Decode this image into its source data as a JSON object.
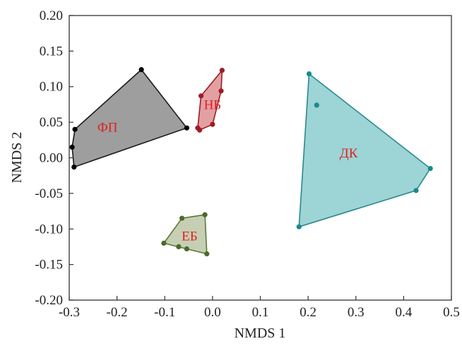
{
  "chart_data": {
    "type": "scatter",
    "xlabel": "NMDS 1",
    "ylabel": "NMDS 2",
    "xlim": [
      -0.3,
      0.5
    ],
    "ylim": [
      -0.2,
      0.2
    ],
    "x_ticks": [
      -0.3,
      -0.2,
      -0.1,
      0.0,
      0.1,
      0.2,
      0.3,
      0.4,
      0.5
    ],
    "x_tick_labels": [
      "-0.3",
      "-0.2",
      "-0.1",
      "0.0",
      "0.1",
      "0.2",
      "0.3",
      "0.4",
      "0.5"
    ],
    "y_ticks": [
      0.2,
      0.15,
      0.1,
      0.05,
      0.0,
      -0.05,
      -0.1,
      -0.15,
      -0.2
    ],
    "y_tick_labels": [
      "0.20",
      "0.15",
      "0.10",
      "0.05",
      "0.00",
      "-0.05",
      "-0.10",
      "-0.15",
      "-0.20"
    ],
    "grid": false,
    "series": [
      {
        "name": "ФП",
        "fill": "#9e9e9e",
        "stroke": "#1a1a1a",
        "point_color": "#000000",
        "label_color": "#e02020",
        "hull": [
          [
            -0.149,
            0.124
          ],
          [
            -0.054,
            0.042
          ],
          [
            -0.29,
            -0.013
          ],
          [
            -0.294,
            0.015
          ],
          [
            -0.288,
            0.04
          ]
        ],
        "points": [
          [
            -0.149,
            0.124
          ],
          [
            -0.054,
            0.042
          ],
          [
            -0.29,
            -0.013
          ],
          [
            -0.294,
            0.015
          ],
          [
            -0.288,
            0.04
          ]
        ],
        "label_at": [
          -0.22,
          0.041
        ]
      },
      {
        "name": "НБ",
        "fill": "#e3a0a2",
        "stroke": "#a01a24",
        "point_color": "#a01a24",
        "label_color": "#e02020",
        "hull": [
          [
            -0.024,
            0.087
          ],
          [
            0.02,
            0.123
          ],
          [
            0.018,
            0.094
          ],
          [
            0.0,
            0.047
          ],
          [
            -0.027,
            0.039
          ],
          [
            -0.031,
            0.042
          ]
        ],
        "points": [
          [
            -0.024,
            0.087
          ],
          [
            0.02,
            0.123
          ],
          [
            0.018,
            0.094
          ],
          [
            0.0,
            0.047
          ],
          [
            -0.027,
            0.039
          ],
          [
            -0.031,
            0.042
          ]
        ],
        "label_at": [
          0.0,
          0.073
        ]
      },
      {
        "name": "ДК",
        "fill": "#9dd4d6",
        "stroke": "#2a8a8c",
        "point_color": "#1a8a8c",
        "label_color": "#e02020",
        "hull": [
          [
            0.202,
            0.118
          ],
          [
            0.456,
            -0.015
          ],
          [
            0.426,
            -0.046
          ],
          [
            0.181,
            -0.097
          ]
        ],
        "points": [
          [
            0.202,
            0.118
          ],
          [
            0.218,
            0.074
          ],
          [
            0.456,
            -0.015
          ],
          [
            0.426,
            -0.046
          ],
          [
            0.181,
            -0.097
          ]
        ],
        "label_at": [
          0.285,
          0.005
        ]
      },
      {
        "name": "ЕБ",
        "fill": "#c6cfb4",
        "stroke": "#5a7a32",
        "point_color": "#4a6a2a",
        "label_color": "#e02020",
        "hull": [
          [
            -0.064,
            -0.085
          ],
          [
            -0.016,
            -0.08
          ],
          [
            -0.012,
            -0.135
          ],
          [
            -0.054,
            -0.128
          ],
          [
            -0.102,
            -0.12
          ]
        ],
        "points": [
          [
            -0.064,
            -0.085
          ],
          [
            -0.016,
            -0.08
          ],
          [
            -0.012,
            -0.135
          ],
          [
            -0.054,
            -0.128
          ],
          [
            -0.071,
            -0.125
          ],
          [
            -0.102,
            -0.12
          ]
        ],
        "label_at": [
          -0.048,
          -0.112
        ]
      }
    ]
  }
}
